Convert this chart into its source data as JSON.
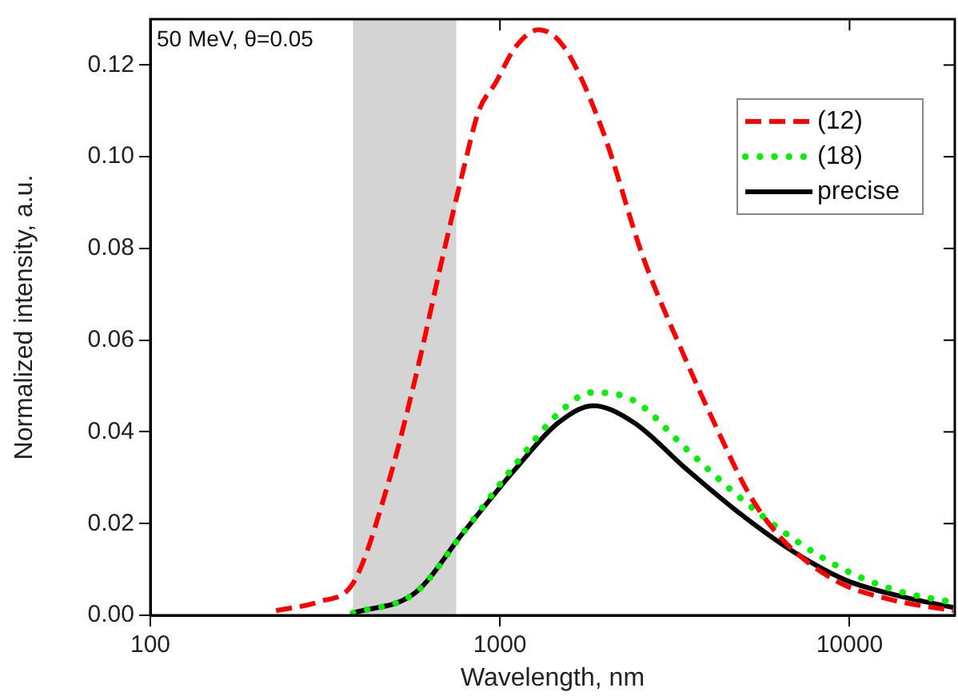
{
  "chart_data": {
    "type": "line",
    "xlabel": "Wavelength, nm",
    "ylabel": "Normalized intensity, a.u.",
    "log": "x",
    "xlim": [
      100,
      20000
    ],
    "xticks": [
      100,
      1000,
      10000
    ],
    "ylim": [
      0,
      0.13
    ],
    "yticks": [
      {
        "value": 0,
        "label": "0.00"
      },
      {
        "value": 0.02,
        "label": "0.02"
      },
      {
        "value": 0.04,
        "label": "0.04"
      },
      {
        "value": 0.06,
        "label": "0.06"
      },
      {
        "value": 0.08,
        "label": "0.08"
      },
      {
        "value": 0.1,
        "label": "0.10"
      },
      {
        "value": 0.12,
        "label": "0.12"
      }
    ],
    "grid": false,
    "legend": "top right",
    "marker": "none",
    "annotations": [
      "50 MeV, θ=0.05"
    ],
    "bands": [
      {
        "axis": "x",
        "from": 380,
        "to": 750,
        "color": "#d4d4d4"
      }
    ],
    "series": [
      {
        "name": "(12)",
        "color": "#ff0000",
        "line_style": "dashed",
        "x": [
          229,
          305,
          380,
          480,
          574,
          685,
          785,
          870,
          970,
          1110,
          1290,
          1523,
          1960,
          2570,
          3300,
          4100,
          5200,
          6400,
          9100,
          13000,
          19800
        ],
        "values": [
          0.001,
          0.003,
          0.007,
          0.029,
          0.052,
          0.078,
          0.097,
          0.11,
          0.116,
          0.124,
          0.1277,
          0.124,
          0.106,
          0.078,
          0.058,
          0.042,
          0.026,
          0.0167,
          0.0076,
          0.0035,
          0.001
        ]
      },
      {
        "name": "(18)",
        "color": "#00ee00",
        "line_style": "dotted",
        "x": [
          380,
          574,
          785,
          1110,
          1470,
          1830,
          2420,
          3400,
          4800,
          6900,
          9800,
          13900,
          19800
        ],
        "values": [
          0.0005,
          0.005,
          0.018,
          0.033,
          0.044,
          0.0486,
          0.0468,
          0.0364,
          0.026,
          0.0167,
          0.0097,
          0.0052,
          0.0028
        ]
      },
      {
        "name": "precise",
        "color": "#000000",
        "line_style": "solid",
        "x": [
          380,
          574,
          785,
          1110,
          1470,
          1850,
          2420,
          3400,
          4800,
          6900,
          9800,
          13900,
          19800
        ],
        "values": [
          0.0005,
          0.005,
          0.018,
          0.032,
          0.042,
          0.0457,
          0.042,
          0.032,
          0.0225,
          0.0139,
          0.0076,
          0.0042,
          0.0017
        ]
      }
    ]
  }
}
